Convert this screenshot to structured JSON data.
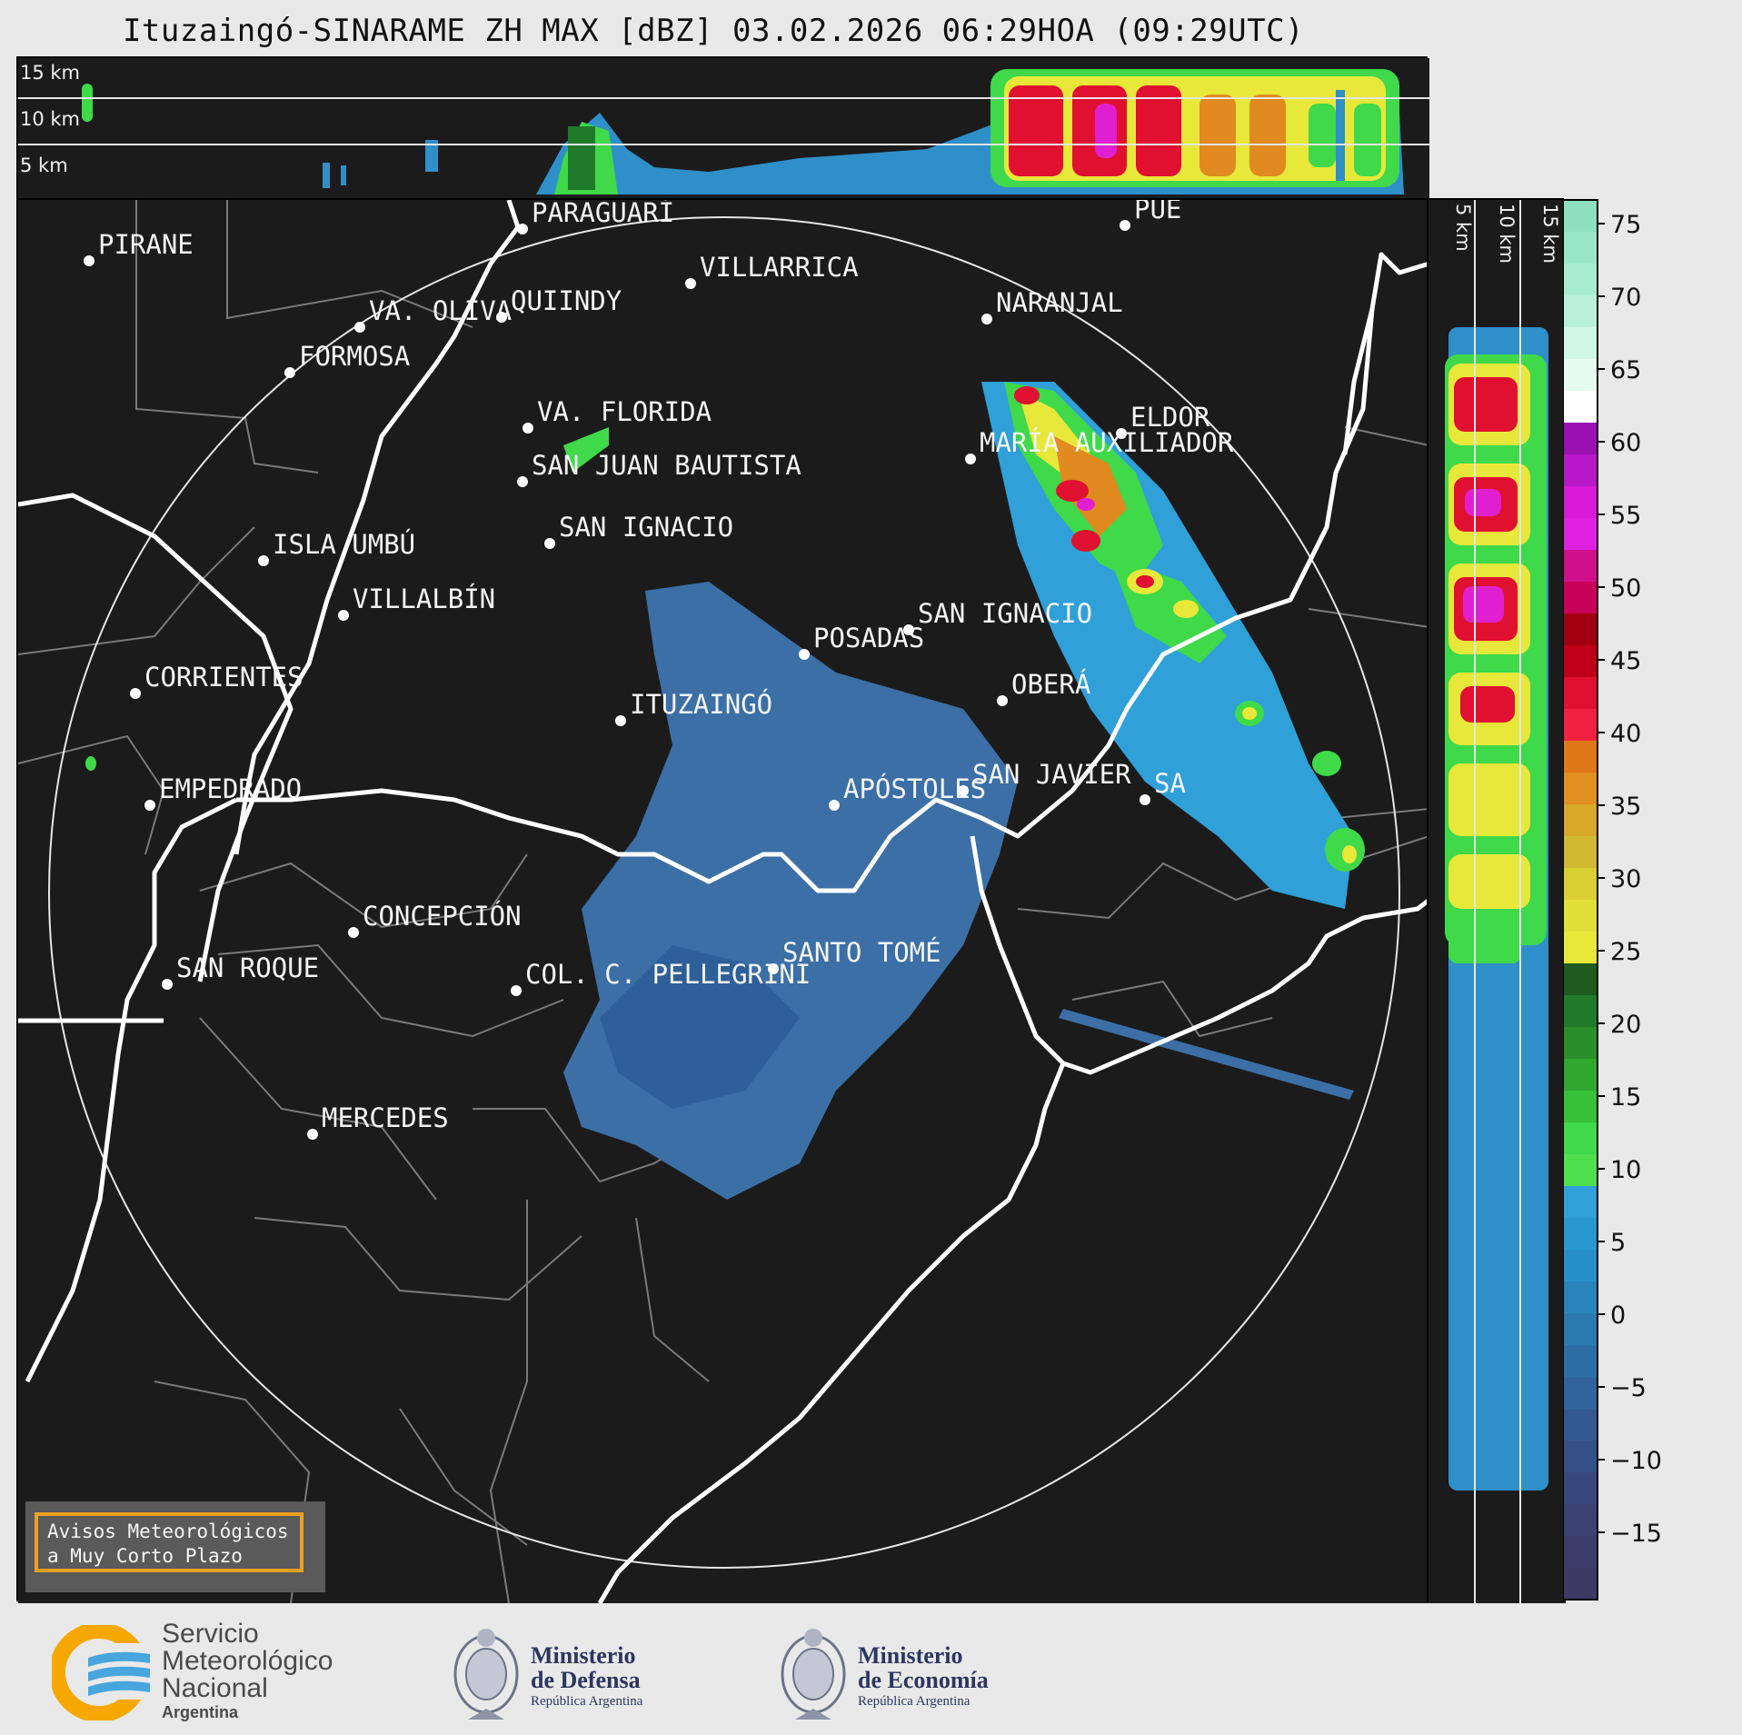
{
  "title": "Ituzaingó-SINARAME ZH MAX [dBZ] 03.02.2026 06:29HOA (09:29UTC)",
  "top_panel": {
    "altitude_labels": [
      "15 km",
      "10 km",
      "5 km"
    ]
  },
  "side_panel": {
    "altitude_labels": [
      "5 km",
      "10 km",
      "15 km"
    ]
  },
  "colorbar": {
    "ticks": [
      "75",
      "70",
      "65",
      "60",
      "55",
      "50",
      "45",
      "40",
      "35",
      "30",
      "25",
      "20",
      "15",
      "10",
      "5",
      "0",
      "−5",
      "−10",
      "−15"
    ],
    "colors": {
      "weak": "#3a3f6e",
      "light": "#3b6fa6",
      "moderate": "#2fa0d8",
      "green": "#3fd94a",
      "dark_green": "#1f7a2a",
      "yellow": "#e8e83a",
      "orange": "#e08a20",
      "red": "#e01030",
      "magenta": "#e020d0",
      "white": "#ffffff",
      "mint": "#8ee0c0"
    }
  },
  "cities": [
    {
      "name": "PIRANE"
    },
    {
      "name": "PARAGUARÍ"
    },
    {
      "name": "VILLARRICA"
    },
    {
      "name": "VA. OLIVA"
    },
    {
      "name": "QUIINDY"
    },
    {
      "name": "NARANJAL"
    },
    {
      "name": "FORMOSA"
    },
    {
      "name": "VA. FLORIDA"
    },
    {
      "name": "ELDOR"
    },
    {
      "name": "MARÍA AUXILIADOR"
    },
    {
      "name": "SAN JUAN BAUTISTA"
    },
    {
      "name": "SAN IGNACIO"
    },
    {
      "name": "ISLA UMBÚ"
    },
    {
      "name": "VILLALBÍN"
    },
    {
      "name": "SAN IGNACIO"
    },
    {
      "name": "POSADAS"
    },
    {
      "name": "CORRIENTES"
    },
    {
      "name": "ITUZAINGÓ"
    },
    {
      "name": "OBERÁ"
    },
    {
      "name": "EMPEDRADO"
    },
    {
      "name": "APÓSTOLES"
    },
    {
      "name": "SAN JAVIER"
    },
    {
      "name": "SA"
    },
    {
      "name": "CONCEPCIÓN"
    },
    {
      "name": "COL. C. PELLEGRINI"
    },
    {
      "name": "SANTO TOMÉ"
    },
    {
      "name": "SAN ROQUE"
    },
    {
      "name": "MERCEDES"
    },
    {
      "name": "PUE"
    }
  ],
  "notice": {
    "line1": "Avisos Meteorológicos",
    "line2": "a Muy Corto Plazo"
  },
  "logos": {
    "smn": {
      "line1": "Servicio",
      "line2": "Meteorológico",
      "line3": "Nacional",
      "line4": "Argentina"
    },
    "defensa": {
      "line1": "Ministerio",
      "line2": "de Defensa",
      "line3": "República Argentina"
    },
    "economia": {
      "line1": "Ministerio",
      "line2": "de Economía",
      "line3": "República Argentina"
    }
  }
}
